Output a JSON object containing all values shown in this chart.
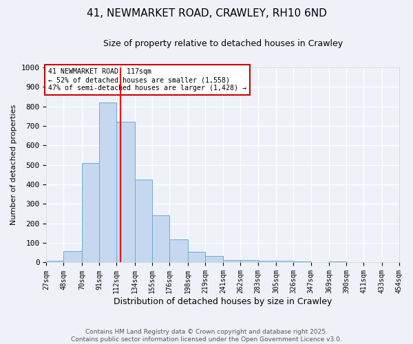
{
  "title": "41, NEWMARKET ROAD, CRAWLEY, RH10 6ND",
  "subtitle": "Size of property relative to detached houses in Crawley",
  "xlabel": "Distribution of detached houses by size in Crawley",
  "ylabel": "Number of detached properties",
  "bin_edges": [
    27,
    48,
    70,
    91,
    112,
    134,
    155,
    176,
    198,
    219,
    241,
    262,
    283,
    305,
    326,
    347,
    369,
    390,
    411,
    433,
    454
  ],
  "bar_heights": [
    10,
    57,
    510,
    820,
    720,
    425,
    240,
    117,
    55,
    33,
    14,
    13,
    10,
    7,
    5,
    2,
    5,
    0,
    0,
    0,
    0
  ],
  "bar_color": "#c5d8f0",
  "bar_edge_color": "#6aaad4",
  "red_line_x": 117,
  "ylim": [
    0,
    1000
  ],
  "yticks": [
    0,
    100,
    200,
    300,
    400,
    500,
    600,
    700,
    800,
    900,
    1000
  ],
  "annotation_title": "41 NEWMARKET ROAD: 117sqm",
  "annotation_line1": "← 52% of detached houses are smaller (1,558)",
  "annotation_line2": "47% of semi-detached houses are larger (1,428) →",
  "annotation_box_color": "#ffffff",
  "annotation_box_edge_color": "#cc0000",
  "footer_line1": "Contains HM Land Registry data © Crown copyright and database right 2025.",
  "footer_line2": "Contains public sector information licensed under the Open Government Licence v3.0.",
  "background_color": "#eef2f8",
  "grid_color": "#ffffff"
}
